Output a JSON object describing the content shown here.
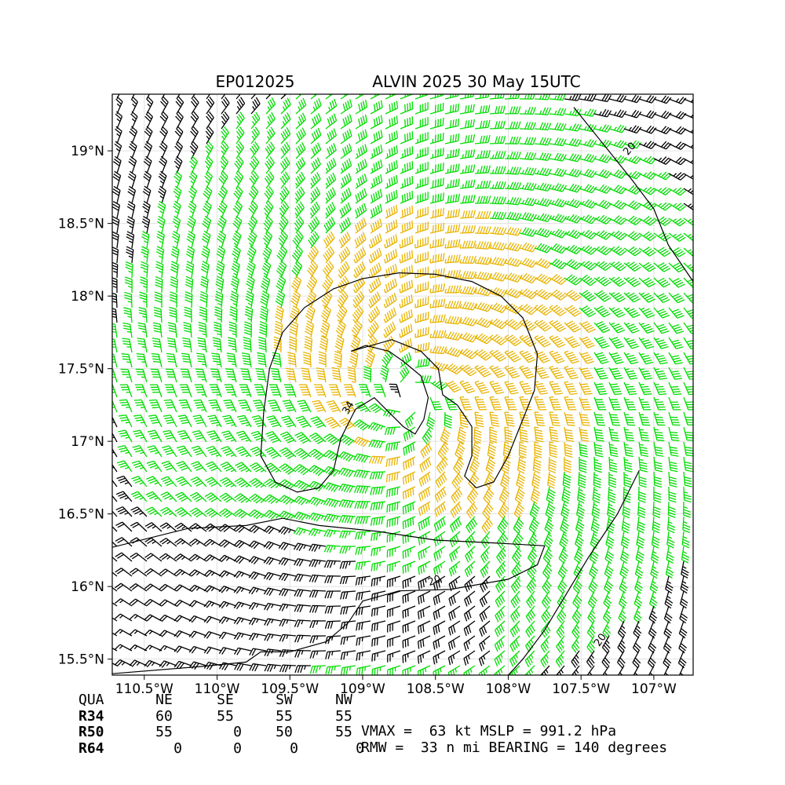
{
  "chart_data": {
    "type": "wind-barb map",
    "title_left": "EP012025",
    "title_right": "ALVIN 2025 30 May 15UTC",
    "x_ticks": [
      "110.5°W",
      "110°W",
      "109.5°W",
      "109°W",
      "108.5°W",
      "108°W",
      "107.5°W",
      "107°W"
    ],
    "x_tick_values": [
      -110.5,
      -110.0,
      -109.5,
      -109.0,
      -108.5,
      -108.0,
      -107.5,
      -107.0
    ],
    "y_ticks": [
      "19°N",
      "18.5°N",
      "18°N",
      "17.5°N",
      "17°N",
      "16.5°N",
      "16°N",
      "15.5°N"
    ],
    "y_tick_values": [
      19.0,
      18.5,
      18.0,
      17.5,
      17.0,
      16.5,
      16.0,
      15.5
    ],
    "xlim": [
      -110.72,
      -106.73
    ],
    "ylim": [
      15.39,
      19.39
    ],
    "grid": true,
    "center": {
      "lon": -108.68,
      "lat": 17.3
    },
    "contour_labels": [
      "34",
      "20",
      "20",
      "20"
    ],
    "wind_colors": {
      "below_34": "#000000",
      "34_to_50": "#00dd00",
      "50_to_64": "#e8b400",
      "64_plus": "#ff5500"
    }
  },
  "table": {
    "headers": [
      "QUA",
      "NE",
      "SE",
      "SW",
      "NW"
    ],
    "rows": [
      {
        "label": "R34",
        "values": [
          "60",
          "55",
          "55",
          "55"
        ]
      },
      {
        "label": "R50",
        "values": [
          "55",
          "0",
          "50",
          "55"
        ]
      },
      {
        "label": "R64",
        "values": [
          "0",
          "0",
          "0",
          "0"
        ]
      }
    ]
  },
  "stats": {
    "line1": "VMAX =  63 kt MSLP = 991.2 hPa",
    "line2": "RMW =  33 n mi BEARING = 140 degrees"
  }
}
